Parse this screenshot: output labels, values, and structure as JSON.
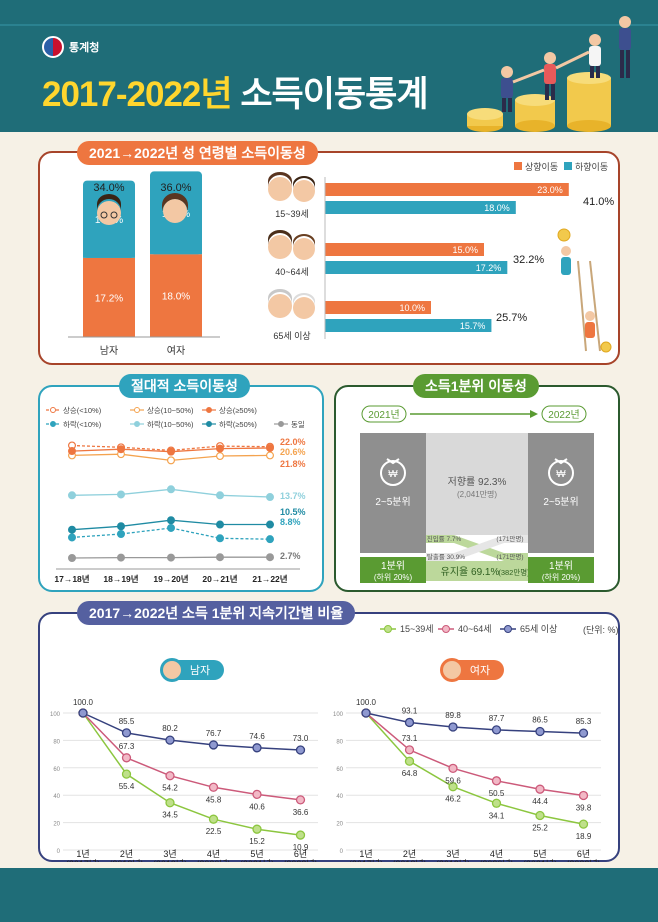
{
  "header": {
    "agency": "통계청",
    "title_year": "2017-2022년",
    "title_main": "소득이동통계"
  },
  "colors": {
    "up": "#ee7640",
    "down": "#2fa3bd",
    "teal": "#1f6d78",
    "green": "#5a9b32",
    "lime": "#8cc63f",
    "pink": "#cc5a7a",
    "navy": "#36417e"
  },
  "sec1": {
    "title": "2021→2022년 성 연령별 소득이동성",
    "legend": [
      "상향이동",
      "하향이동"
    ],
    "chart_data": [
      {
        "type": "bar",
        "categories": [
          "남자",
          "여자"
        ],
        "totals": [
          "34.0%",
          "36.0%"
        ],
        "series": [
          {
            "name": "상향이동",
            "values": [
              17.2,
              18.0
            ]
          },
          {
            "name": "하향이동",
            "values": [
              16.8,
              18.0
            ]
          }
        ]
      },
      {
        "type": "bar",
        "categories": [
          "15~39세",
          "40~64세",
          "65세 이상"
        ],
        "totals": [
          "41.0%",
          "32.2%",
          "25.7%"
        ],
        "series": [
          {
            "name": "상향이동",
            "values": [
              23.0,
              15.0,
              10.0
            ]
          },
          {
            "name": "하향이동",
            "values": [
              18.0,
              17.2,
              15.7
            ]
          }
        ]
      }
    ]
  },
  "sec2": {
    "title": "절대적 소득이동성",
    "chart_data": {
      "type": "line",
      "categories": [
        "17→18년",
        "18→19년",
        "19→20년",
        "20→21년",
        "21→22년"
      ],
      "series": [
        {
          "name": "상승(<10%)",
          "values": [
            22.2,
            21.9,
            21.4,
            22.1,
            22.0
          ],
          "label": "22.0%"
        },
        {
          "name": "상승(10~50%)",
          "values": [
            20.6,
            20.8,
            19.8,
            20.5,
            20.6
          ],
          "label": "20.6%"
        },
        {
          "name": "상승(≥50%)",
          "values": [
            21.3,
            21.6,
            21.2,
            21.7,
            21.8
          ],
          "label": "21.8%"
        },
        {
          "name": "하락(<10%)",
          "values": [
            9.0,
            9.4,
            10.1,
            8.9,
            8.8
          ],
          "label": "8.8%"
        },
        {
          "name": "하락(10~50%)",
          "values": [
            13.9,
            14.0,
            14.6,
            13.9,
            13.7
          ],
          "label": "13.7%"
        },
        {
          "name": "하락(≥50%)",
          "values": [
            9.9,
            10.3,
            11.0,
            10.5,
            10.5
          ],
          "label": "10.5%"
        },
        {
          "name": "동일",
          "values": [
            2.5,
            2.6,
            2.6,
            2.7,
            2.7
          ],
          "label": "2.7%"
        }
      ]
    }
  },
  "sec3": {
    "title": "소득1분위 이동성",
    "year_from": "2021년",
    "year_to": "2022년",
    "box_other": "2~5분위",
    "box_q1": "1분위",
    "box_q1_sub": "(하위 20%)",
    "low_stay": "저향률 92.3%",
    "low_stay_sub": "(2,041만명)",
    "enter": "진입률 7.7%",
    "enter_sub": "(171만명)",
    "exit": "탈출률 30.9%",
    "exit_sub": "(171만명)",
    "keep": "유지율 69.1%",
    "keep_sub": "(382만명)"
  },
  "sec4": {
    "title": "2017→2022년 소득 1분위 지속기간별 비율",
    "unit": "(단위: %)",
    "male": "남자",
    "female": "여자",
    "legend": [
      "15~39세",
      "40~64세",
      "65세 이상"
    ],
    "xlabels": [
      [
        "1년",
        "(2017년)"
      ],
      [
        "2년",
        "(2018년)"
      ],
      [
        "3년",
        "(2019년)"
      ],
      [
        "4년",
        "(2020년)"
      ],
      [
        "5년",
        "(2021년)"
      ],
      [
        "6년",
        "(2022년)"
      ]
    ],
    "chart_data": [
      {
        "type": "line",
        "title": "남자",
        "ylim": [
          0,
          100
        ],
        "x": [
          "1년",
          "2년",
          "3년",
          "4년",
          "5년",
          "6년"
        ],
        "series": [
          {
            "name": "15~39세",
            "values": [
              100.0,
              55.4,
              34.5,
              22.5,
              15.2,
              10.9
            ]
          },
          {
            "name": "40~64세",
            "values": [
              100.0,
              67.3,
              54.2,
              45.8,
              40.6,
              36.6
            ]
          },
          {
            "name": "65세 이상",
            "values": [
              100.0,
              85.5,
              80.2,
              76.7,
              74.6,
              73.0
            ]
          }
        ]
      },
      {
        "type": "line",
        "title": "여자",
        "ylim": [
          0,
          100
        ],
        "x": [
          "1년",
          "2년",
          "3년",
          "4년",
          "5년",
          "6년"
        ],
        "series": [
          {
            "name": "15~39세",
            "values": [
              100.0,
              64.8,
              46.2,
              34.1,
              25.2,
              18.9
            ]
          },
          {
            "name": "40~64세",
            "values": [
              100.0,
              73.1,
              59.6,
              50.5,
              44.4,
              39.8
            ]
          },
          {
            "name": "65세 이상",
            "values": [
              100.0,
              93.1,
              89.8,
              87.7,
              86.5,
              85.3
            ]
          }
        ]
      }
    ]
  }
}
